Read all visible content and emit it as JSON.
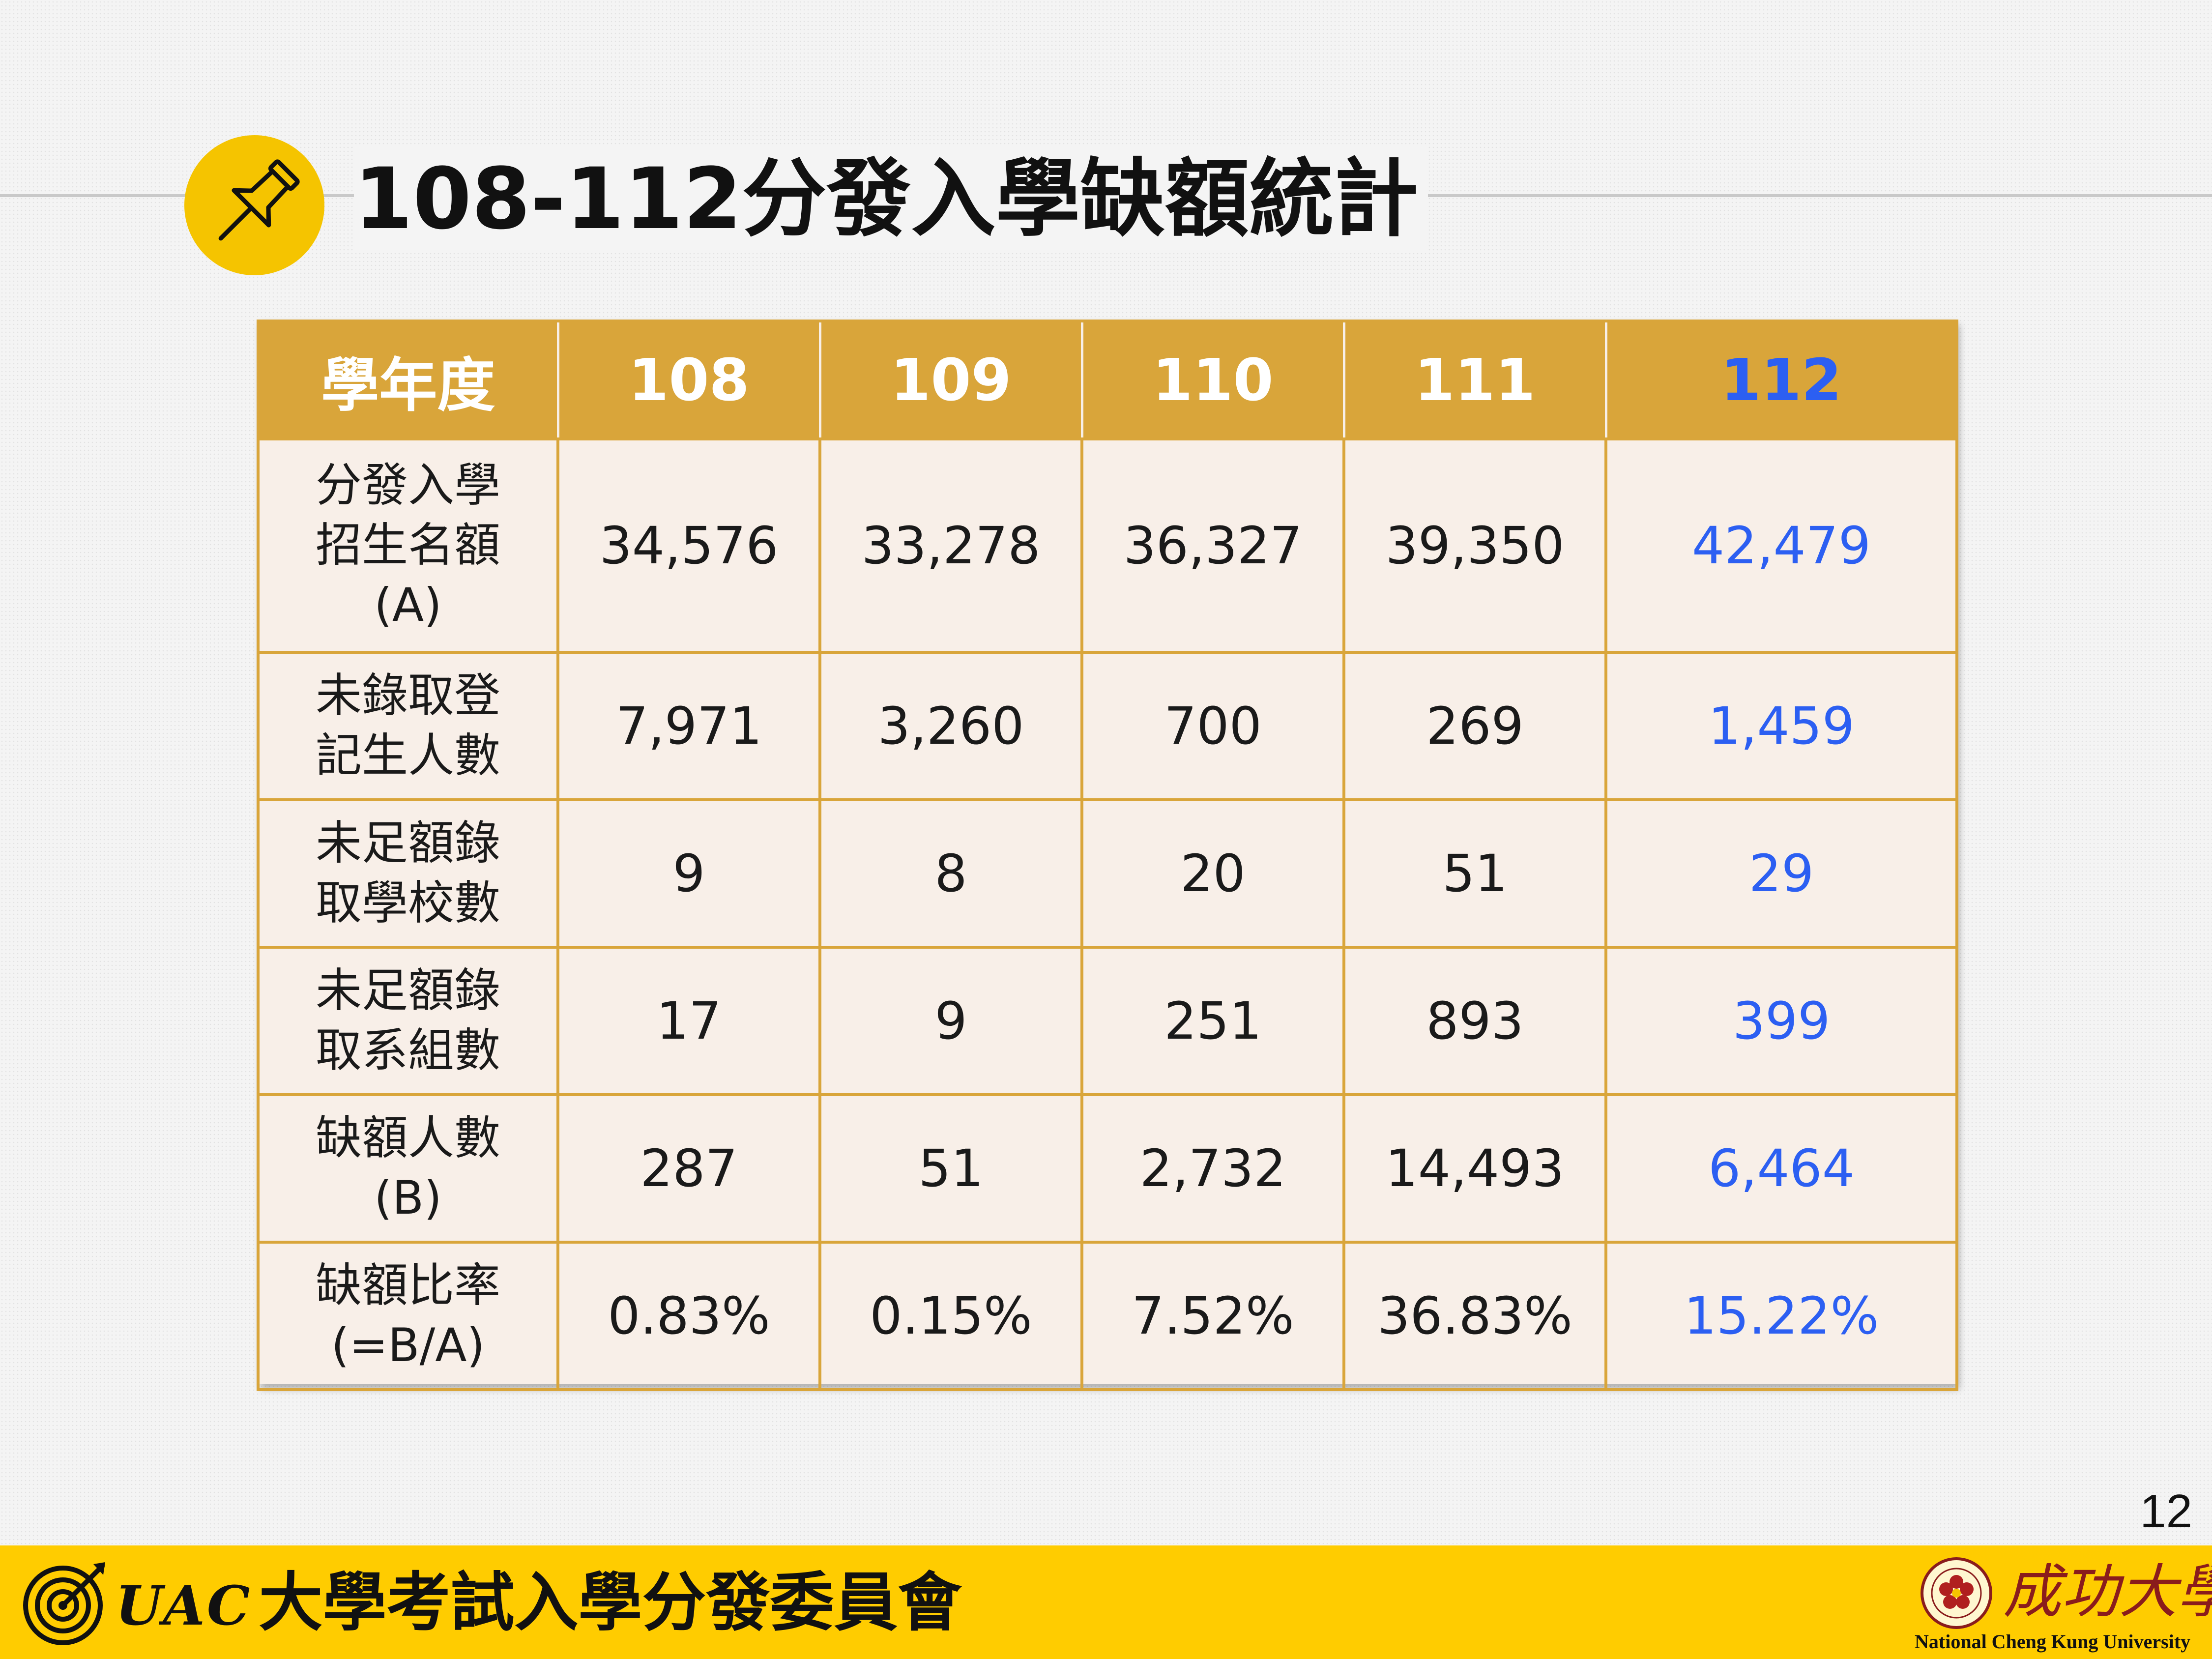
{
  "slide": {
    "title": "108-112分發入學缺額統計",
    "page_number": "12"
  },
  "table": {
    "header_label": "學年度",
    "years": [
      "108",
      "109",
      "110",
      "111",
      "112"
    ],
    "rows": [
      {
        "label_lines": [
          "分發入學",
          "招生名額",
          "(A)"
        ],
        "values": [
          "34,576",
          "33,278",
          "36,327",
          "39,350",
          "42,479"
        ]
      },
      {
        "label_lines": [
          "未錄取登",
          "記生人數"
        ],
        "values": [
          "7,971",
          "3,260",
          "700",
          "269",
          "1,459"
        ]
      },
      {
        "label_lines": [
          "未足額錄",
          "取學校數"
        ],
        "values": [
          "9",
          "8",
          "20",
          "51",
          "29"
        ]
      },
      {
        "label_lines": [
          "未足額錄",
          "取系組數"
        ],
        "values": [
          "17",
          "9",
          "251",
          "893",
          "399"
        ]
      },
      {
        "label_lines": [
          "缺額人數",
          "(B)"
        ],
        "values": [
          "287",
          "51",
          "2,732",
          "14,493",
          "6,464"
        ]
      },
      {
        "label_lines": [
          "缺額比率",
          "(=B/A)"
        ],
        "values": [
          "0.83%",
          "0.15%",
          "7.52%",
          "36.83%",
          "15.22%"
        ]
      }
    ]
  },
  "footer": {
    "brand_abbr": "UAC",
    "brand_name": "大學考試入學分發委員會",
    "university_name_zh": "成功大學",
    "university_name_en": "National Cheng Kung University"
  },
  "icons": {
    "title_badge": "pushpin-icon",
    "footer_left": "target-arrow-icon",
    "footer_right": "university-seal-icon"
  },
  "colors": {
    "header_bg": "#d9a53a",
    "cell_bg": "#f8efe8",
    "highlight_text": "#2c5ff2",
    "footer_bg": "#ffcc00",
    "badge_bg": "#f5c400"
  }
}
